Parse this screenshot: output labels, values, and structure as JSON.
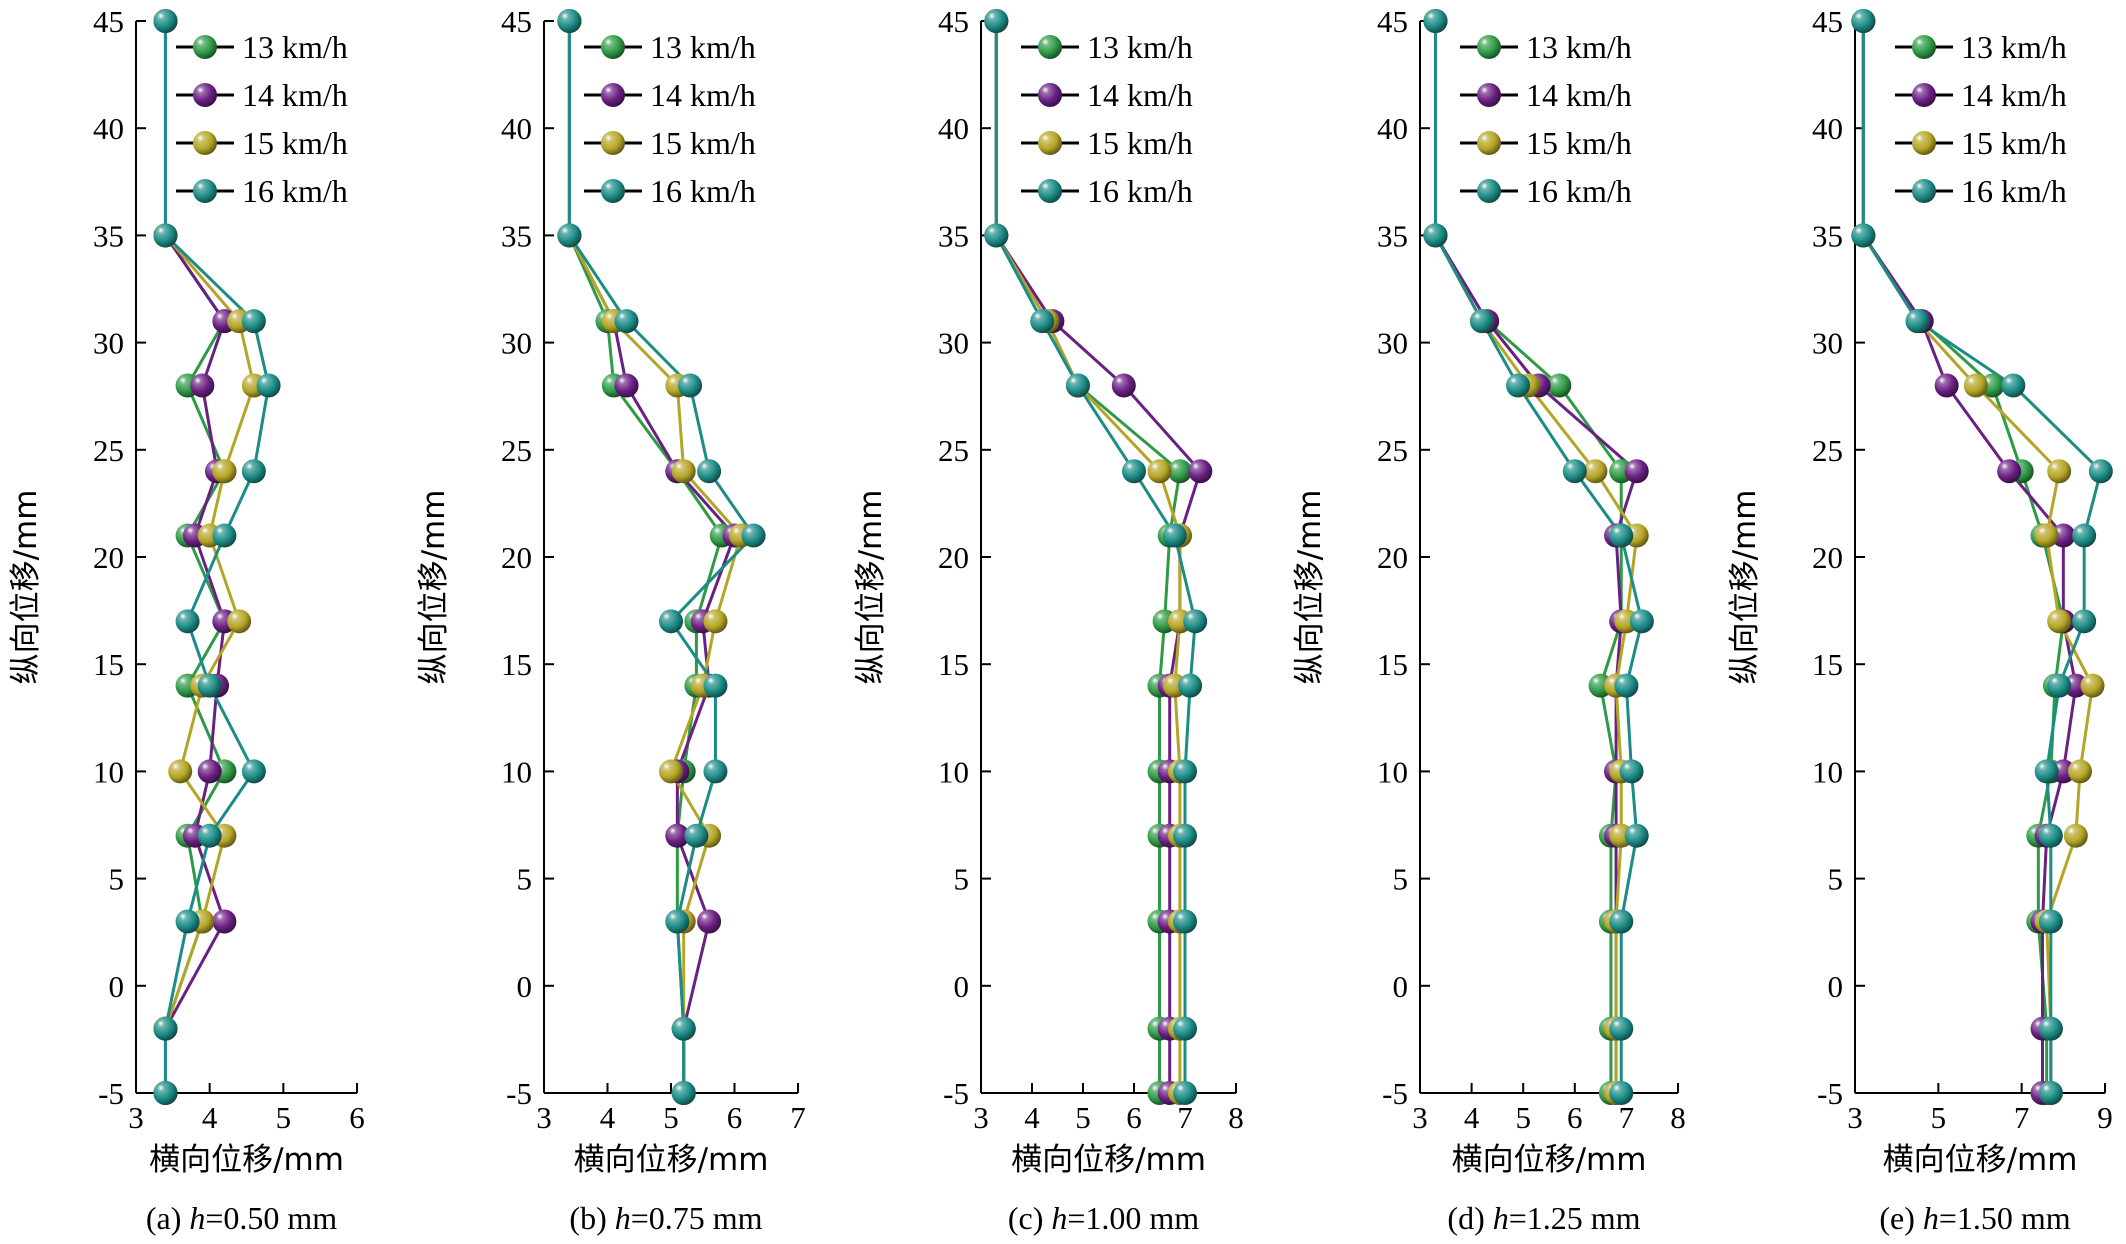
{
  "figure": {
    "colors": {
      "13 km/h": "#2e9a45",
      "14 km/h": "#6a1f82",
      "15 km/h": "#b5a526",
      "16 km/h": "#1c8c86"
    }
  },
  "chart_data": [
    {
      "type": "line",
      "caption_prefix": "(a) ",
      "caption_var": "h",
      "caption_suffix": "=0.50 mm",
      "xlabel": "横向位移/mm",
      "ylabel": "纵向位移/mm",
      "xlim": [
        3,
        6
      ],
      "ylim": [
        -5,
        45
      ],
      "xticks": [
        3,
        4,
        5,
        6
      ],
      "yticks": [
        -5,
        0,
        5,
        10,
        15,
        20,
        25,
        30,
        35,
        40,
        45
      ],
      "legend": [
        "13 km/h",
        "14 km/h",
        "15 km/h",
        "16 km/h"
      ],
      "legend_position": "top-right",
      "y": [
        -5,
        -2,
        3,
        7,
        10,
        14,
        17,
        21,
        24,
        28,
        31,
        35,
        45
      ],
      "series": [
        {
          "name": "13 km/h",
          "x": [
            3.4,
            3.4,
            3.9,
            3.7,
            4.2,
            3.7,
            4.2,
            3.7,
            4.2,
            3.7,
            4.2,
            3.4,
            3.4
          ]
        },
        {
          "name": "14 km/h",
          "x": [
            3.4,
            3.4,
            4.2,
            3.8,
            4.0,
            4.1,
            4.2,
            3.8,
            4.1,
            3.9,
            4.2,
            3.4,
            3.4
          ]
        },
        {
          "name": "15 km/h",
          "x": [
            3.4,
            3.4,
            3.9,
            4.2,
            3.6,
            3.9,
            4.4,
            4.0,
            4.2,
            4.6,
            4.4,
            3.4,
            3.4
          ]
        },
        {
          "name": "16 km/h",
          "x": [
            3.4,
            3.4,
            3.7,
            4.0,
            4.6,
            4.0,
            3.7,
            4.2,
            4.6,
            4.8,
            4.6,
            3.4,
            3.4
          ]
        }
      ]
    },
    {
      "type": "line",
      "caption_prefix": "(b) ",
      "caption_var": "h",
      "caption_suffix": "=0.75 mm",
      "xlabel": "横向位移/mm",
      "ylabel": "纵向位移/mm",
      "xlim": [
        3,
        7
      ],
      "ylim": [
        -5,
        45
      ],
      "xticks": [
        3,
        4,
        5,
        6,
        7
      ],
      "yticks": [
        -5,
        0,
        5,
        10,
        15,
        20,
        25,
        30,
        35,
        40,
        45
      ],
      "legend": [
        "13 km/h",
        "14 km/h",
        "15 km/h",
        "16 km/h"
      ],
      "legend_position": "top-right",
      "y": [
        -5,
        -2,
        3,
        7,
        10,
        14,
        17,
        21,
        24,
        28,
        31,
        35,
        45
      ],
      "series": [
        {
          "name": "13 km/h",
          "x": [
            5.2,
            5.2,
            5.1,
            5.1,
            5.2,
            5.4,
            5.4,
            5.8,
            5.1,
            4.1,
            4.0,
            3.4,
            3.4
          ]
        },
        {
          "name": "14 km/h",
          "x": [
            5.2,
            5.2,
            5.6,
            5.1,
            5.1,
            5.6,
            5.5,
            6.0,
            5.1,
            4.3,
            4.1,
            3.4,
            3.4
          ]
        },
        {
          "name": "15 km/h",
          "x": [
            5.2,
            5.2,
            5.2,
            5.6,
            5.0,
            5.5,
            5.7,
            6.1,
            5.2,
            5.1,
            4.1,
            3.4,
            3.4
          ]
        },
        {
          "name": "16 km/h",
          "x": [
            5.2,
            5.2,
            5.1,
            5.4,
            5.7,
            5.7,
            5.0,
            6.3,
            5.6,
            5.3,
            4.3,
            3.4,
            3.4
          ]
        }
      ]
    },
    {
      "type": "line",
      "caption_prefix": "(c) ",
      "caption_var": "h",
      "caption_suffix": "=1.00 mm",
      "xlabel": "横向位移/mm",
      "ylabel": "纵向位移/mm",
      "xlim": [
        3,
        8
      ],
      "ylim": [
        -5,
        45
      ],
      "xticks": [
        3,
        4,
        5,
        6,
        7,
        8
      ],
      "yticks": [
        -5,
        0,
        5,
        10,
        15,
        20,
        25,
        30,
        35,
        40,
        45
      ],
      "legend": [
        "13 km/h",
        "14 km/h",
        "15 km/h",
        "16 km/h"
      ],
      "legend_position": "top-right",
      "y": [
        -5,
        -2,
        3,
        7,
        10,
        14,
        17,
        21,
        24,
        28,
        31,
        35,
        45
      ],
      "series": [
        {
          "name": "13 km/h",
          "x": [
            6.5,
            6.5,
            6.5,
            6.5,
            6.5,
            6.5,
            6.6,
            6.7,
            6.9,
            4.9,
            4.3,
            3.3,
            3.3
          ]
        },
        {
          "name": "14 km/h",
          "x": [
            6.7,
            6.7,
            6.7,
            6.7,
            6.7,
            6.7,
            6.9,
            6.9,
            7.3,
            5.8,
            4.4,
            3.3,
            3.3
          ]
        },
        {
          "name": "15 km/h",
          "x": [
            6.9,
            6.9,
            6.9,
            6.9,
            6.9,
            6.8,
            6.9,
            6.9,
            6.5,
            4.9,
            4.3,
            3.3,
            3.3
          ]
        },
        {
          "name": "16 km/h",
          "x": [
            7.0,
            7.0,
            7.0,
            7.0,
            7.0,
            7.1,
            7.2,
            6.8,
            6.0,
            4.9,
            4.2,
            3.3,
            3.3
          ]
        }
      ]
    },
    {
      "type": "line",
      "caption_prefix": "(d) ",
      "caption_var": "h",
      "caption_suffix": "=1.25 mm",
      "xlabel": "横向位移/mm",
      "ylabel": "纵向位移/mm",
      "xlim": [
        3,
        8
      ],
      "ylim": [
        -5,
        45
      ],
      "xticks": [
        3,
        4,
        5,
        6,
        7,
        8
      ],
      "yticks": [
        -5,
        0,
        5,
        10,
        15,
        20,
        25,
        30,
        35,
        40,
        45
      ],
      "legend": [
        "13 km/h",
        "14 km/h",
        "15 km/h",
        "16 km/h"
      ],
      "legend_position": "top-right",
      "y": [
        -5,
        -2,
        3,
        7,
        10,
        14,
        17,
        21,
        24,
        28,
        31,
        35,
        45
      ],
      "series": [
        {
          "name": "13 km/h",
          "x": [
            6.7,
            6.7,
            6.7,
            6.7,
            6.8,
            6.5,
            6.9,
            6.9,
            6.9,
            5.7,
            4.3,
            3.3,
            3.3
          ]
        },
        {
          "name": "14 km/h",
          "x": [
            6.8,
            6.8,
            6.8,
            6.8,
            6.8,
            6.8,
            6.9,
            6.8,
            7.2,
            5.3,
            4.3,
            3.3,
            3.3
          ]
        },
        {
          "name": "15 km/h",
          "x": [
            6.8,
            6.8,
            6.8,
            6.9,
            6.9,
            6.8,
            7.0,
            7.2,
            6.4,
            5.1,
            4.2,
            3.3,
            3.3
          ]
        },
        {
          "name": "16 km/h",
          "x": [
            6.9,
            6.9,
            6.9,
            7.2,
            7.1,
            7.0,
            7.3,
            6.9,
            6.0,
            4.9,
            4.2,
            3.3,
            3.3
          ]
        }
      ]
    },
    {
      "type": "line",
      "caption_prefix": "(e) ",
      "caption_var": "h",
      "caption_suffix": "=1.50 mm",
      "xlabel": "横向位移/mm",
      "ylabel": "纵向位移/mm",
      "xlim": [
        3,
        9
      ],
      "ylim": [
        -5,
        45
      ],
      "xticks": [
        3,
        5,
        7,
        9
      ],
      "yticks": [
        -5,
        0,
        5,
        10,
        15,
        20,
        25,
        30,
        35,
        40,
        45
      ],
      "legend": [
        "13 km/h",
        "14 km/h",
        "15 km/h",
        "16 km/h"
      ],
      "legend_position": "top-right",
      "y": [
        -5,
        -2,
        3,
        7,
        10,
        14,
        17,
        21,
        24,
        28,
        31,
        35,
        45
      ],
      "series": [
        {
          "name": "13 km/h",
          "x": [
            7.6,
            7.6,
            7.4,
            7.4,
            7.7,
            7.8,
            8.0,
            7.5,
            7.0,
            6.3,
            4.6,
            3.2,
            3.2
          ]
        },
        {
          "name": "14 km/h",
          "x": [
            7.5,
            7.5,
            7.5,
            7.6,
            8.0,
            8.3,
            8.0,
            8.0,
            6.7,
            5.2,
            4.6,
            3.2,
            3.2
          ]
        },
        {
          "name": "15 km/h",
          "x": [
            7.7,
            7.7,
            7.6,
            8.3,
            8.4,
            8.7,
            7.9,
            7.6,
            7.9,
            5.9,
            4.5,
            3.2,
            3.2
          ]
        },
        {
          "name": "16 km/h",
          "x": [
            7.7,
            7.7,
            7.7,
            7.7,
            7.6,
            7.9,
            8.5,
            8.5,
            8.9,
            6.8,
            4.5,
            3.2,
            3.2
          ]
        }
      ]
    }
  ]
}
